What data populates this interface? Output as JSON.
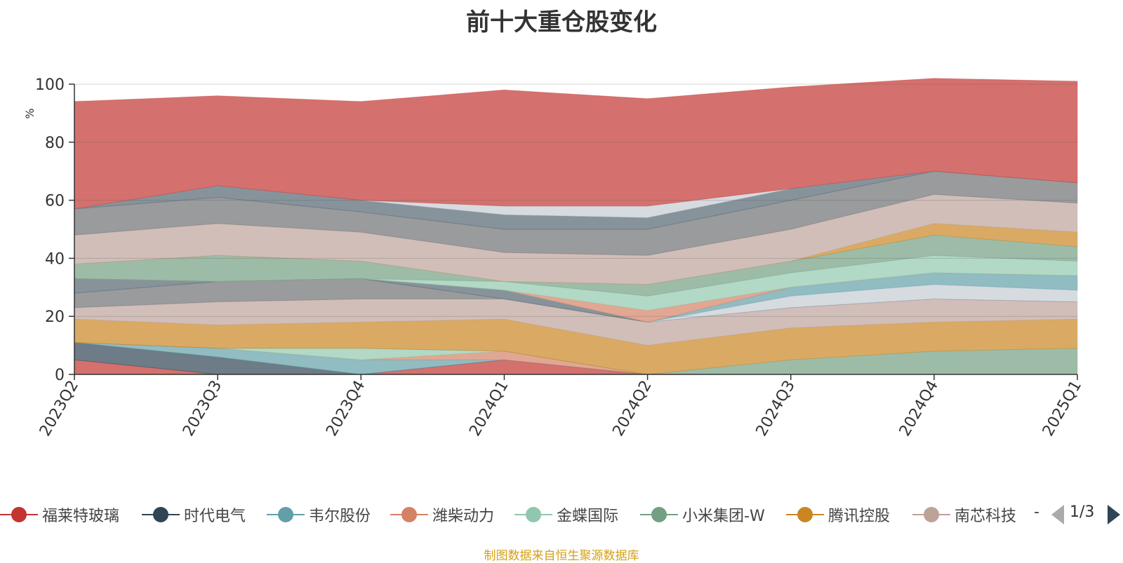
{
  "chart_data": {
    "type": "area",
    "stacked": true,
    "title": "前十大重仓股变化",
    "ylabel": "%",
    "xlabel": "",
    "ylim": [
      0,
      100
    ],
    "yticks": [
      0,
      20,
      40,
      60,
      80,
      100
    ],
    "categories": [
      "2023Q2",
      "2023Q3",
      "2023Q4",
      "2024Q1",
      "2024Q2",
      "2024Q3",
      "2024Q4",
      "2025Q1"
    ],
    "grid": true,
    "legend_position": "bottom",
    "series": [
      {
        "name": "福莱特玻璃",
        "color": "#c23531",
        "values": [
          5,
          0,
          0,
          5,
          0,
          0,
          0,
          0
        ]
      },
      {
        "name": "时代电气",
        "color": "#2f4554",
        "values": [
          6,
          6,
          0,
          0,
          0,
          0,
          0,
          0
        ]
      },
      {
        "name": "韦尔股份",
        "color": "#61a0a8",
        "values": [
          0,
          3,
          5,
          0,
          0,
          0,
          0,
          0
        ]
      },
      {
        "name": "潍柴动力",
        "color": "#d48265",
        "values": [
          0,
          0,
          0,
          3,
          0,
          0,
          0,
          0
        ]
      },
      {
        "name": "金蝶国际",
        "color": "#91c7ae",
        "values": [
          0,
          0,
          4,
          0,
          0,
          0,
          0,
          0
        ]
      },
      {
        "name": "小米集团-W",
        "color": "#749f83",
        "values": [
          0,
          0,
          0,
          0,
          0,
          5,
          8,
          9
        ]
      },
      {
        "name": "腾讯控股",
        "color": "#ca8622",
        "values": [
          8,
          8,
          9,
          11,
          10,
          11,
          10,
          10
        ]
      },
      {
        "name": "南芯科技",
        "color": "#bda29a",
        "values": [
          4,
          8,
          8,
          7,
          8,
          7,
          8,
          6
        ]
      },
      {
        "name": "",
        "color": "#6e7074",
        "values": [
          5,
          7,
          7,
          0,
          0,
          0,
          0,
          0
        ]
      },
      {
        "name": "",
        "color": "#546570",
        "values": [
          5,
          0,
          0,
          3,
          0,
          0,
          0,
          0
        ]
      },
      {
        "name": "",
        "color": "#c4ccd3",
        "values": [
          0,
          0,
          0,
          0,
          0,
          4,
          5,
          4
        ]
      },
      {
        "name": "",
        "color": "#61a0a8",
        "values": [
          0,
          0,
          0,
          0,
          0,
          3,
          4,
          5
        ]
      },
      {
        "name": "",
        "color": "#d48265",
        "values": [
          0,
          0,
          0,
          0,
          4,
          0,
          0,
          0
        ]
      },
      {
        "name": "",
        "color": "#91c7ae",
        "values": [
          0,
          0,
          0,
          3,
          5,
          5,
          6,
          5
        ]
      },
      {
        "name": "",
        "color": "#749f83",
        "values": [
          5,
          9,
          6,
          0,
          4,
          4,
          7,
          5
        ]
      },
      {
        "name": "",
        "color": "#ca8622",
        "values": [
          0,
          0,
          0,
          0,
          0,
          0,
          4,
          5
        ]
      },
      {
        "name": "",
        "color": "#bda29a",
        "values": [
          10,
          11,
          10,
          10,
          10,
          11,
          10,
          10
        ]
      },
      {
        "name": "",
        "color": "#6e7074",
        "values": [
          9,
          9,
          7,
          8,
          9,
          10,
          8,
          7
        ]
      },
      {
        "name": "",
        "color": "#546570",
        "values": [
          0,
          4,
          4,
          5,
          4,
          4,
          0,
          0
        ]
      },
      {
        "name": "",
        "color": "#c4ccd3",
        "values": [
          0,
          0,
          0,
          3,
          4,
          0,
          0,
          0
        ]
      },
      {
        "name": "",
        "color": "#c23531",
        "values": [
          37,
          31,
          34,
          40,
          37,
          35,
          32,
          35
        ]
      }
    ]
  },
  "legend": {
    "items": [
      {
        "label": "福莱特玻璃",
        "color": "#c23531"
      },
      {
        "label": "时代电气",
        "color": "#2f4554"
      },
      {
        "label": "韦尔股份",
        "color": "#61a0a8"
      },
      {
        "label": "潍柴动力",
        "color": "#d48265"
      },
      {
        "label": "金蝶国际",
        "color": "#91c7ae"
      },
      {
        "label": "小米集团-W",
        "color": "#749f83"
      },
      {
        "label": "腾讯控股",
        "color": "#ca8622"
      },
      {
        "label": "南芯科技",
        "color": "#bda29a"
      }
    ],
    "more": "-",
    "page": "1/3"
  },
  "source": "制图数据来自恒生聚源数据库"
}
